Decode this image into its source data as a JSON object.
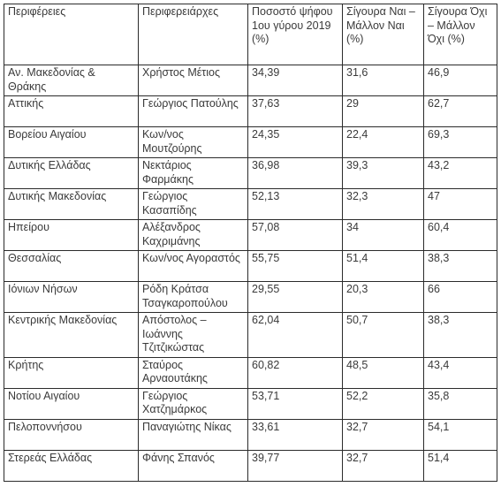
{
  "headers": [
    "Περιφέρειες",
    "Περιφερειάρχες",
    "Ποσοστό ψήφου 1ου γύρου 2019 (%)",
    "Σίγουρα Ναι – Μάλλον Ναι (%)",
    "Σίγουρα Όχι – Μάλλον Όχι (%)"
  ],
  "rows": [
    [
      "Αν. Μακεδονίας & Θράκης",
      "Χρήστος Μέτιος",
      "34,39",
      "31,6",
      "46,9"
    ],
    [
      "Αττικής",
      "Γεώργιος Πατούλης",
      "37,63",
      "29",
      "62,7"
    ],
    [
      "Βορείου Αιγαίου",
      "Κων/νος Μουτζούρης",
      "24,35",
      "22,4",
      "69,3"
    ],
    [
      "Δυτικής Ελλάδας",
      "Νεκτάριος Φαρμάκης",
      "36,98",
      "39,3",
      "43,2"
    ],
    [
      "Δυτικής Μακεδονίας",
      "Γεώργιος Κασαπίδης",
      "52,13",
      "32,3",
      "47"
    ],
    [
      "Ηπείρου",
      "Αλέξανδρος Καχριμάνης",
      "57,08",
      "34",
      "60,4"
    ],
    [
      "Θεσσαλίας",
      "Κων/νος Αγοραστός",
      "55,75",
      "51,4",
      "38,3"
    ],
    [
      "Ιόνιων Νήσων",
      "Ρόδη Κράτσα Τσαγκαροπούλου",
      "29,55",
      "20,3",
      "66"
    ],
    [
      "Κεντρικής Μακεδονίας",
      "Απόστολος – Ιωάννης Τζιτζικώστας",
      "62,04",
      "50,7",
      "38,3"
    ],
    [
      "Κρήτης",
      "Σταύρος Αρναουτάκης",
      "60,82",
      "48,5",
      "43,4"
    ],
    [
      "Νοτίου Αιγαίου",
      "Γεώργιος Χατζημάρκος",
      "53,71",
      "52,2",
      "35,8"
    ],
    [
      "Πελοποννήσου",
      "Παναγιώτης Νίκας",
      "33,61",
      "32,7",
      "54,1"
    ],
    [
      "Στερεάς Ελλάδας",
      "Φάνης Σπανός",
      "39,77",
      "32,7",
      "51,4"
    ]
  ]
}
